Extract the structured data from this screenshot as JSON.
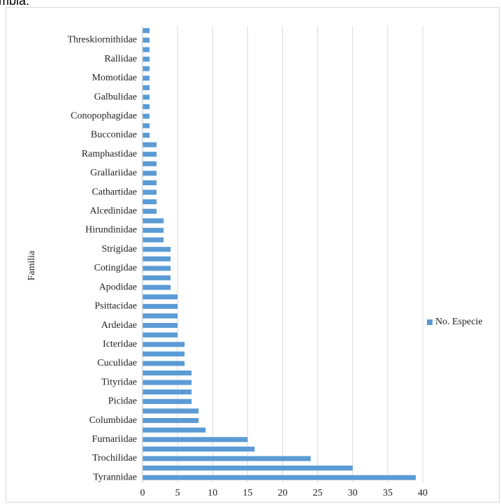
{
  "fragment": "mbia.",
  "chart_data": {
    "type": "bar",
    "orientation": "horizontal",
    "y_label": "Familia",
    "categories": [
      "Tyrannidae",
      null,
      "Trochilidae",
      null,
      "Furnariidae",
      null,
      "Columbidae",
      null,
      "Picidae",
      null,
      "Tityridae",
      null,
      "Cuculidae",
      null,
      "Icteridae",
      null,
      "Ardeidae",
      null,
      "Psittacidae",
      null,
      "Apodidae",
      null,
      "Cotingidae",
      null,
      "Strigidae",
      null,
      "Hirundinidae",
      null,
      "Alcedinidae",
      null,
      "Cathartidae",
      null,
      "Grallariidae",
      null,
      "Ramphastidae",
      null,
      "Bucconidae",
      null,
      "Conopophagidae",
      null,
      "Galbulidae",
      null,
      "Momotidae",
      null,
      "Rallidae",
      null,
      "Threskiornithidae",
      null
    ],
    "series": [
      {
        "name": "No. Especie",
        "color": "#5b9bd5",
        "values": [
          39,
          30,
          24,
          16,
          15,
          9,
          8,
          8,
          7,
          7,
          7,
          7,
          6,
          6,
          6,
          5,
          5,
          5,
          5,
          5,
          4,
          4,
          4,
          4,
          4,
          3,
          3,
          3,
          2,
          2,
          2,
          2,
          2,
          2,
          2,
          2,
          1,
          1,
          1,
          1,
          1,
          1,
          1,
          1,
          1,
          1,
          1,
          1
        ]
      }
    ],
    "xlim": [
      0,
      40
    ],
    "xticks": [
      0,
      5,
      10,
      15,
      20,
      25,
      30,
      35,
      40
    ],
    "grid": true,
    "legend": "right"
  }
}
